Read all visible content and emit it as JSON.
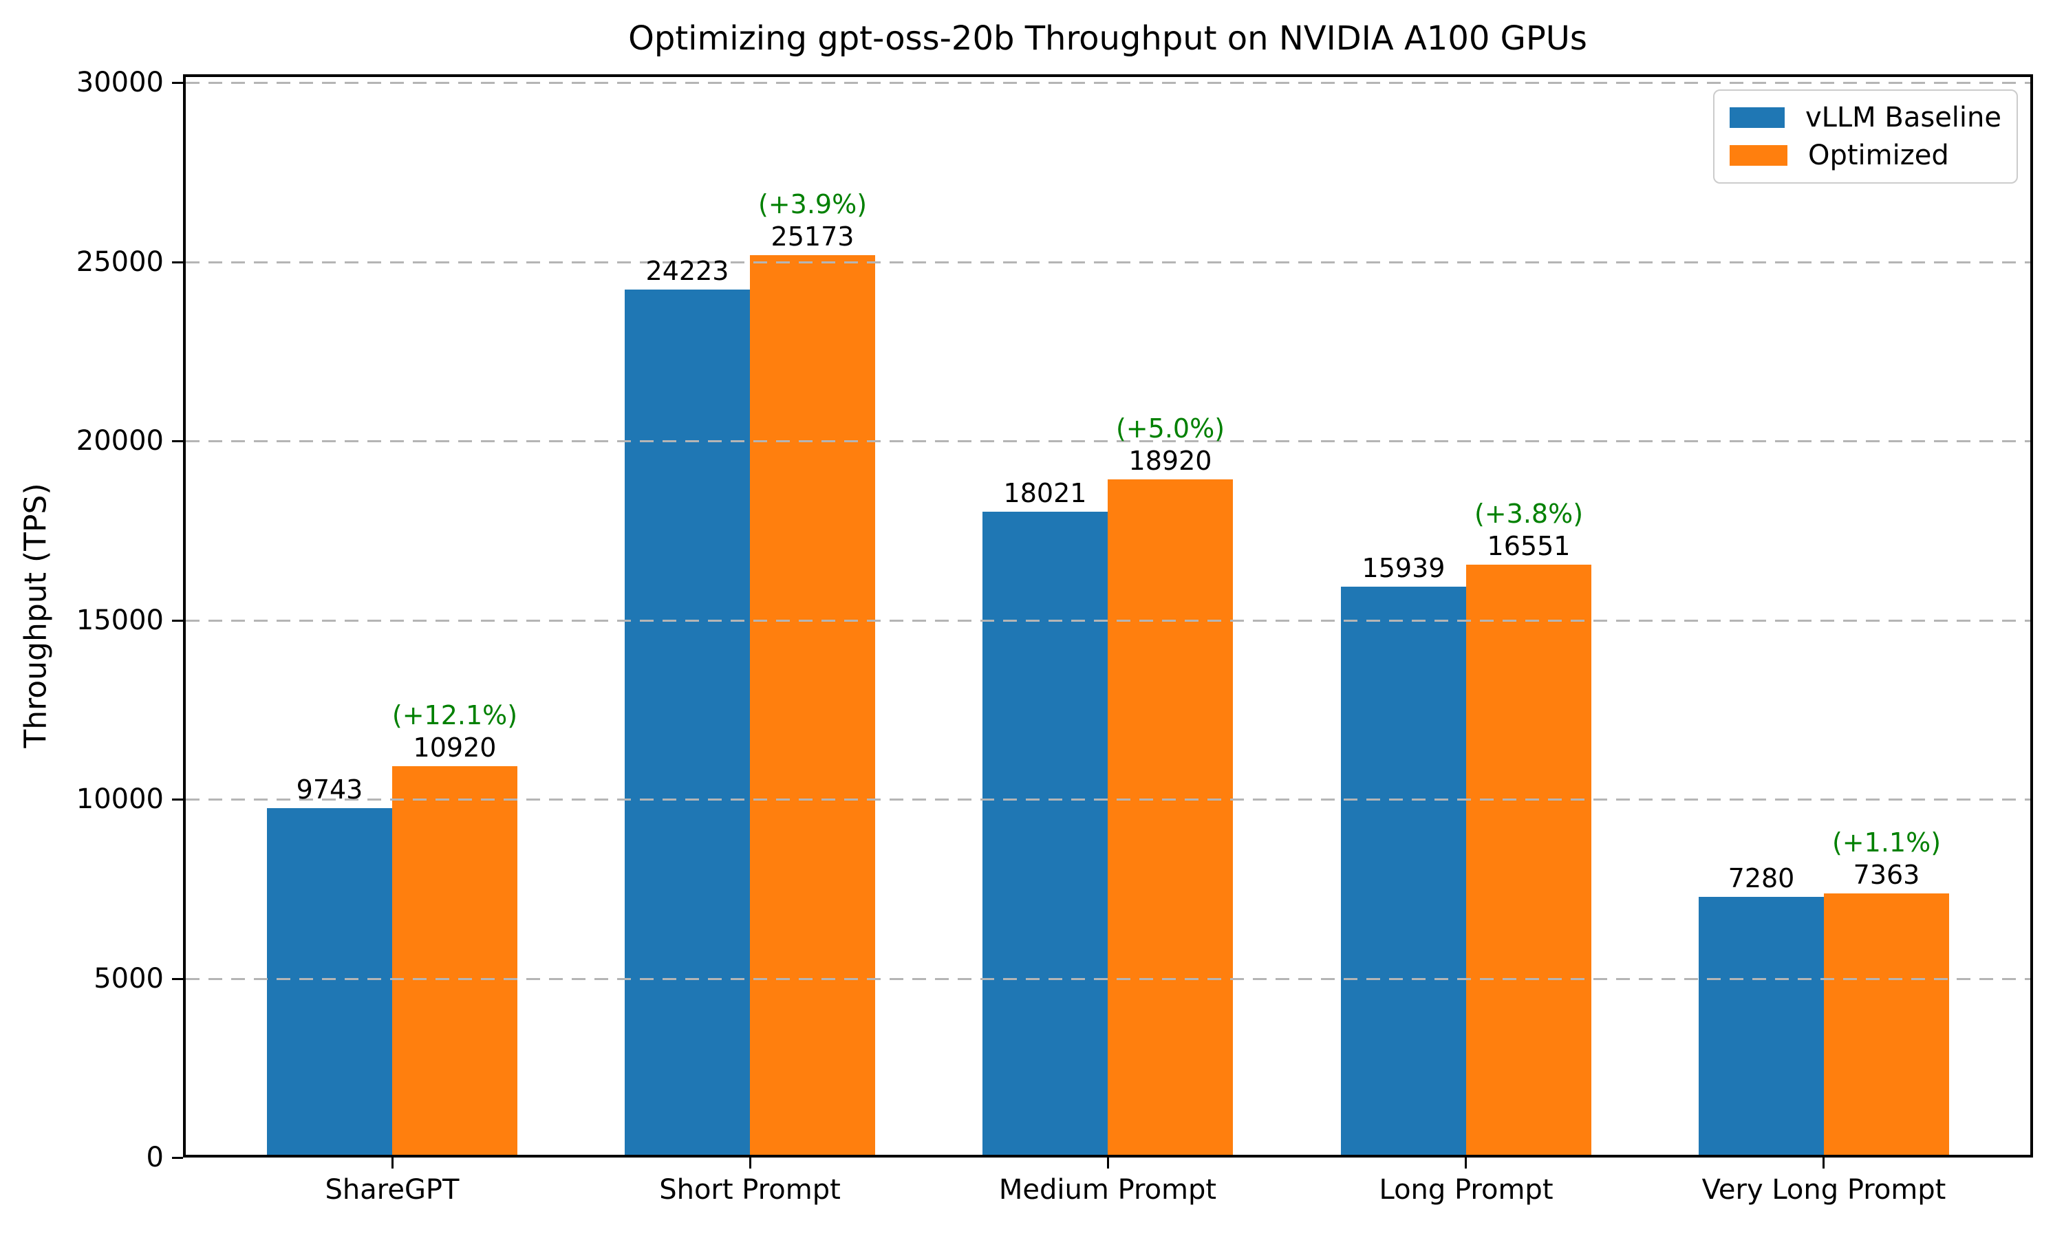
{
  "chart_data": {
    "type": "bar",
    "title": "Optimizing gpt-oss-20b Throughput on NVIDIA A100 GPUs",
    "xlabel": "",
    "ylabel": "Throughput (TPS)",
    "categories": [
      "ShareGPT",
      "Short Prompt",
      "Medium Prompt",
      "Long Prompt",
      "Very Long Prompt"
    ],
    "series": [
      {
        "name": "vLLM Baseline",
        "color": "#1f77b4",
        "values": [
          9743,
          24223,
          18021,
          15939,
          7280
        ]
      },
      {
        "name": "Optimized",
        "color": "#ff7f0e",
        "values": [
          10920,
          25173,
          18920,
          16551,
          7363
        ]
      }
    ],
    "improvement_labels": [
      "(+12.1%)",
      "(+3.9%)",
      "(+5.0%)",
      "(+3.8%)",
      "(+1.1%)"
    ],
    "improvement_color": "#008000",
    "yticks": [
      0,
      5000,
      10000,
      15000,
      20000,
      25000,
      30000
    ],
    "ylim": [
      0,
      30000
    ],
    "grid": "horizontal-dashed",
    "gridline_color": "#b5b5b5",
    "legend_position": "upper right",
    "legend_labels": [
      "vLLM Baseline",
      "Optimized"
    ]
  }
}
